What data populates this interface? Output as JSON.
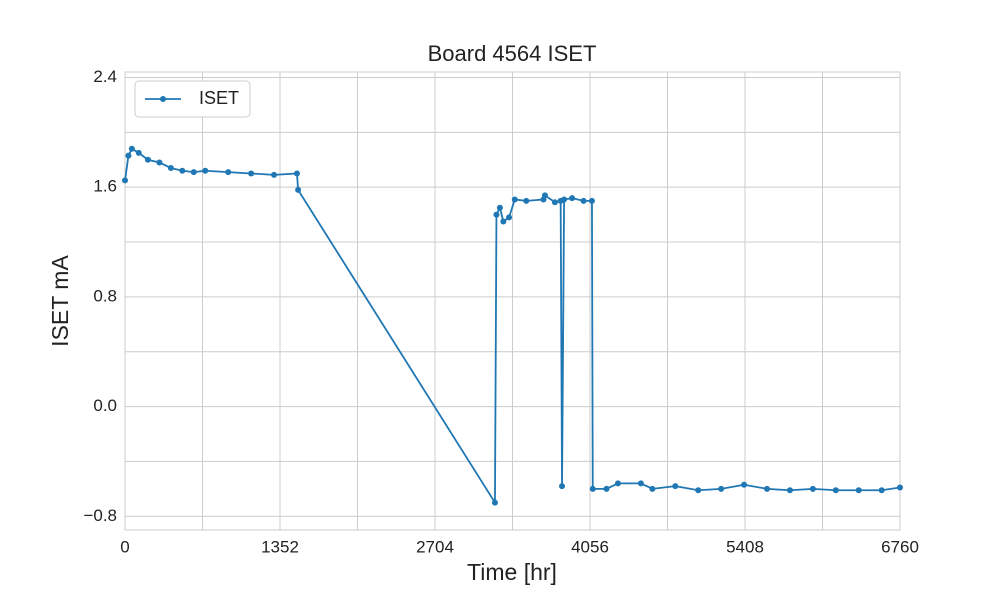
{
  "chart_data": {
    "type": "line",
    "title": "Board 4564 ISET",
    "x_label": "Time [hr]",
    "y_label": "ISET mA",
    "x": [
      0,
      30,
      60,
      120,
      200,
      300,
      400,
      500,
      600,
      700,
      900,
      1100,
      1300,
      1500,
      1510,
      3227,
      3240,
      3270,
      3300,
      3350,
      3400,
      3500,
      3650,
      3663,
      3750,
      3800,
      3812,
      3830,
      3900,
      4000,
      4073,
      4080,
      4200,
      4300,
      4500,
      4600,
      4800,
      5000,
      5200,
      5400,
      5600,
      5800,
      6000,
      6200,
      6400,
      6600,
      6760
    ],
    "series": [
      {
        "name": "ISET",
        "color": "#1f77b4",
        "values": [
          1.65,
          1.83,
          1.88,
          1.85,
          1.8,
          1.78,
          1.74,
          1.72,
          1.71,
          1.72,
          1.71,
          1.7,
          1.69,
          1.7,
          1.58,
          -0.7,
          1.4,
          1.45,
          1.35,
          1.38,
          1.51,
          1.5,
          1.51,
          1.54,
          1.49,
          1.5,
          -0.58,
          1.51,
          1.52,
          1.5,
          1.5,
          -0.6,
          -0.6,
          -0.56,
          -0.56,
          -0.6,
          -0.58,
          -0.61,
          -0.6,
          -0.57,
          -0.6,
          -0.61,
          -0.6,
          -0.61,
          -0.61,
          -0.61,
          -0.59
        ]
      }
    ],
    "xlim": [
      0,
      6760
    ],
    "xticks": [
      0,
      1352,
      2704,
      4056,
      5408,
      6760
    ],
    "ylim": [
      -0.9,
      2.44
    ],
    "yticks": [
      {
        "value": -0.8,
        "label": "−0.8"
      },
      {
        "value": 0,
        "label": "0.0"
      },
      0.8,
      1.6,
      2.4
    ],
    "grid": true,
    "minor_grid": true,
    "legend": "upper left"
  }
}
